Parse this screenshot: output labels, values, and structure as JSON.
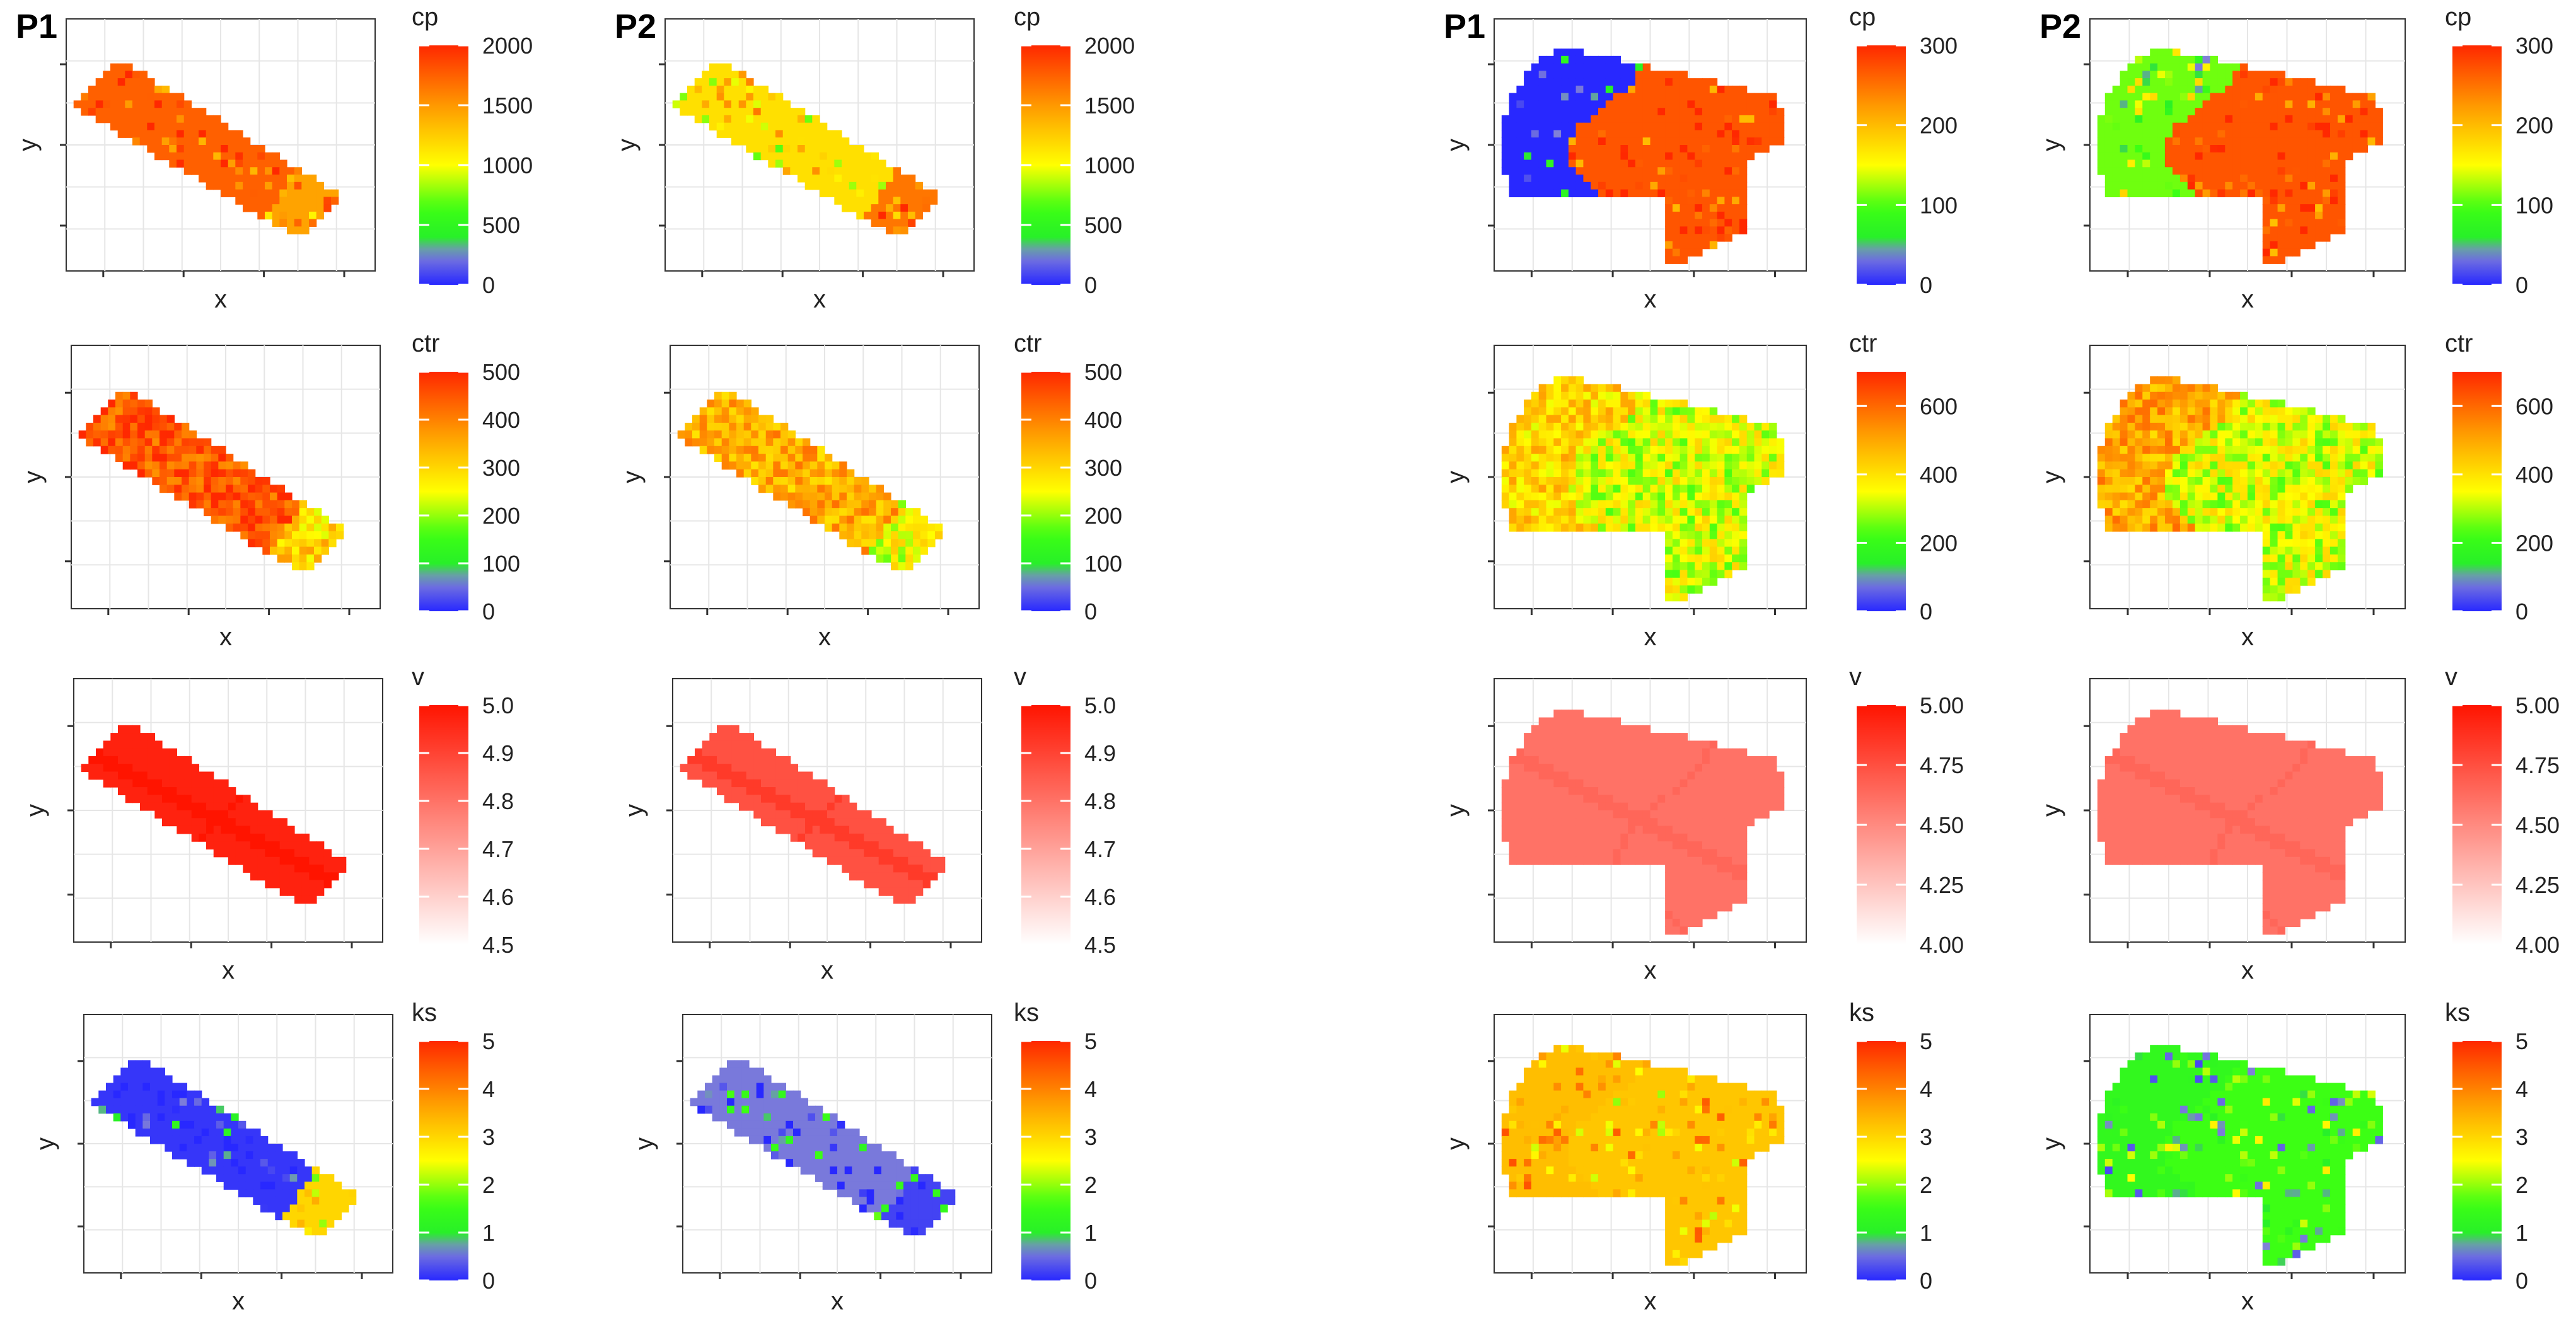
{
  "figure": {
    "row_labels": [
      "P1",
      "P2",
      "P1",
      "P2"
    ],
    "axis_x_label": "x",
    "axis_y_label": "y"
  },
  "chart_data": [
    {
      "type": "heatmap",
      "dataset": "left",
      "variable": "cp",
      "legend_title": "cp",
      "range": [
        0,
        2000
      ],
      "legend_ticks": [
        "0",
        "500",
        "1000",
        "1500",
        "2000"
      ],
      "colormap": "blue-green-yellow-orange-red",
      "panels": [
        {
          "label": "P1",
          "zones": [
            {
              "zone": "upper-left",
              "value": 1750
            },
            {
              "zone": "lower-right",
              "value": 1450
            }
          ]
        },
        {
          "label": "P2",
          "zones": [
            {
              "zone": "upper-left",
              "value": 1150
            },
            {
              "zone": "lower-right",
              "value": 1650
            }
          ]
        }
      ]
    },
    {
      "type": "heatmap",
      "dataset": "left",
      "variable": "ctr",
      "legend_title": "ctr",
      "range": [
        0,
        500
      ],
      "legend_ticks": [
        "0",
        "100",
        "200",
        "300",
        "400",
        "500"
      ],
      "colormap": "blue-green-yellow-orange-red",
      "panels": [
        {
          "label": "P1",
          "zones": [
            {
              "zone": "upper-left",
              "value": 450
            },
            {
              "zone": "lower-right",
              "value": 300
            }
          ]
        },
        {
          "label": "P2",
          "zones": [
            {
              "zone": "upper-left",
              "value": 350
            },
            {
              "zone": "lower-right",
              "value": 250
            }
          ]
        }
      ]
    },
    {
      "type": "heatmap",
      "dataset": "left",
      "variable": "v",
      "legend_title": "v",
      "range": [
        4.5,
        5.0
      ],
      "legend_ticks": [
        "4.5",
        "4.6",
        "4.7",
        "4.8",
        "4.9",
        "5.0"
      ],
      "colormap": "white-red",
      "panels": [
        {
          "label": "P1",
          "zones": [
            {
              "zone": "catchment",
              "value": 4.97
            },
            {
              "zone": "channels",
              "value": 5.0
            }
          ]
        },
        {
          "label": "P2",
          "zones": [
            {
              "zone": "catchment",
              "value": 4.87
            },
            {
              "zone": "channels",
              "value": 4.92
            }
          ]
        }
      ]
    },
    {
      "type": "heatmap",
      "dataset": "left",
      "variable": "ks",
      "legend_title": "ks",
      "range": [
        0,
        5
      ],
      "legend_ticks": [
        "0",
        "1",
        "2",
        "3",
        "4",
        "5"
      ],
      "colormap": "blue-green-yellow-orange-red",
      "panels": [
        {
          "label": "P1",
          "zones": [
            {
              "zone": "upper-left",
              "value": 0.1
            },
            {
              "zone": "lower-right",
              "value": 3.0
            }
          ]
        },
        {
          "label": "P2",
          "zones": [
            {
              "zone": "upper-left",
              "value": 0.6
            },
            {
              "zone": "lower-right",
              "value": 0.2
            }
          ]
        }
      ]
    },
    {
      "type": "heatmap",
      "dataset": "right",
      "variable": "cp",
      "legend_title": "cp",
      "range": [
        0,
        300
      ],
      "legend_ticks": [
        "0",
        "100",
        "200",
        "300"
      ],
      "colormap": "blue-green-yellow-orange-red",
      "panels": [
        {
          "label": "P1",
          "zones": [
            {
              "zone": "west",
              "value": 0
            },
            {
              "zone": "east",
              "value": 270
            }
          ]
        },
        {
          "label": "P2",
          "zones": [
            {
              "zone": "west",
              "value": 110
            },
            {
              "zone": "east",
              "value": 270
            }
          ]
        }
      ]
    },
    {
      "type": "heatmap",
      "dataset": "right",
      "variable": "ctr",
      "legend_title": "ctr",
      "range": [
        0,
        700
      ],
      "legend_ticks": [
        "0",
        "200",
        "400",
        "600"
      ],
      "colormap": "blue-green-yellow-orange-red",
      "panels": [
        {
          "label": "P1",
          "zones": [
            {
              "zone": "west",
              "value": 420
            },
            {
              "zone": "east",
              "value": 330
            }
          ]
        },
        {
          "label": "P2",
          "zones": [
            {
              "zone": "west",
              "value": 500
            },
            {
              "zone": "east",
              "value": 330
            }
          ]
        }
      ]
    },
    {
      "type": "heatmap",
      "dataset": "right",
      "variable": "v",
      "legend_title": "v",
      "range": [
        4.0,
        5.0
      ],
      "legend_ticks": [
        "4.00",
        "4.25",
        "4.50",
        "4.75",
        "5.00"
      ],
      "colormap": "white-red",
      "panels": [
        {
          "label": "P1",
          "zones": [
            {
              "zone": "catchment",
              "value": 4.6
            },
            {
              "zone": "channels",
              "value": 4.65
            }
          ]
        },
        {
          "label": "P2",
          "zones": [
            {
              "zone": "catchment",
              "value": 4.6
            },
            {
              "zone": "channels",
              "value": 4.65
            }
          ]
        }
      ]
    },
    {
      "type": "heatmap",
      "dataset": "right",
      "variable": "ks",
      "legend_title": "ks",
      "range": [
        0,
        5
      ],
      "legend_ticks": [
        "0",
        "1",
        "2",
        "3",
        "4",
        "5"
      ],
      "colormap": "blue-green-yellow-orange-red",
      "panels": [
        {
          "label": "P1",
          "zones": [
            {
              "zone": "west",
              "value": 3.3
            },
            {
              "zone": "east",
              "value": 3.2
            }
          ]
        },
        {
          "label": "P2",
          "zones": [
            {
              "zone": "west",
              "value": 1.3
            },
            {
              "zone": "east",
              "value": 1.6
            }
          ]
        }
      ]
    }
  ]
}
